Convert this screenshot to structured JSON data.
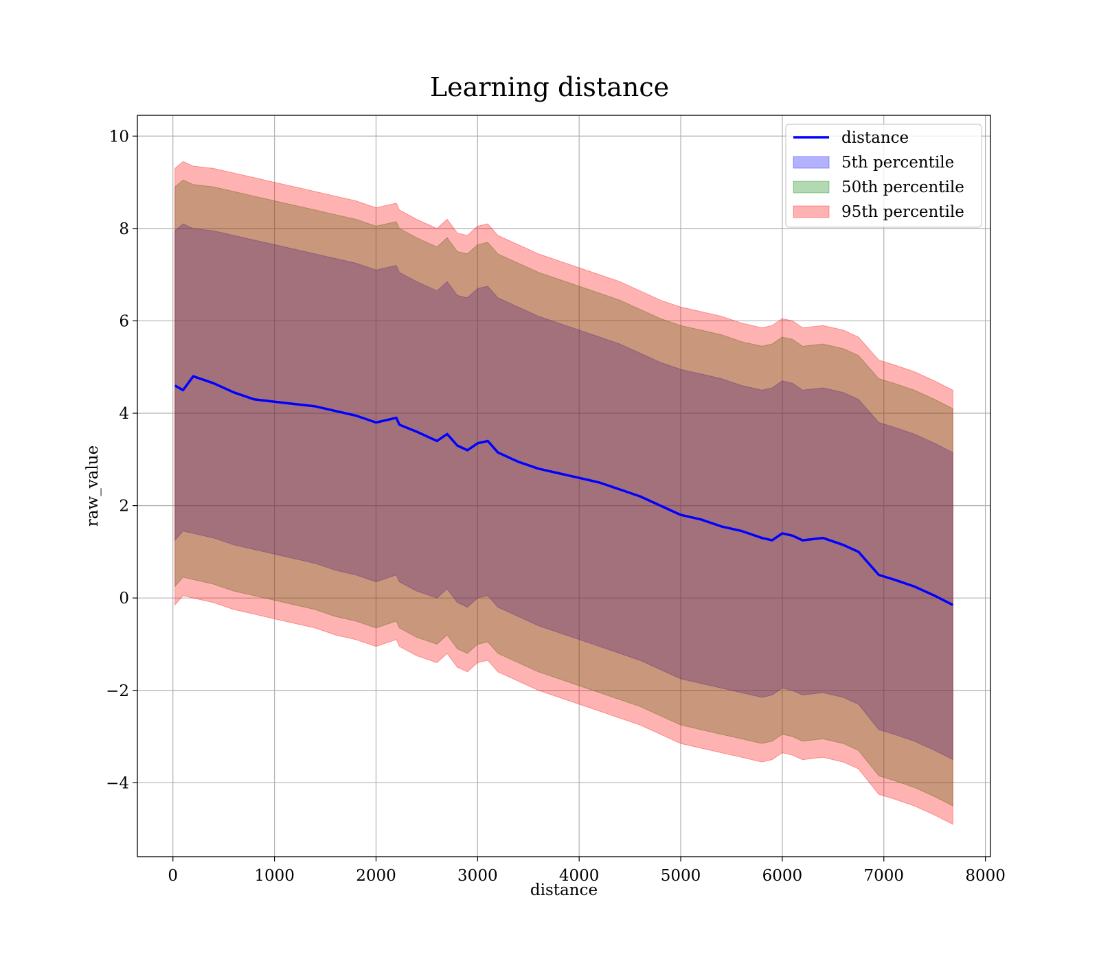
{
  "chart_data": {
    "type": "line",
    "title": "Learning distance",
    "xlabel": "distance",
    "ylabel": "raw_value",
    "xlim": [
      -350,
      8050
    ],
    "ylim": [
      -5.6,
      10.45
    ],
    "xticks": [
      0,
      1000,
      2000,
      3000,
      4000,
      5000,
      6000,
      7000,
      8000
    ],
    "yticks": [
      -4,
      -2,
      0,
      2,
      4,
      6,
      8,
      10
    ],
    "xtick_labels": [
      "0",
      "1000",
      "2000",
      "3000",
      "4000",
      "5000",
      "6000",
      "7000",
      "8000"
    ],
    "ytick_labels": [
      "−4",
      "−2",
      "0",
      "2",
      "4",
      "6",
      "8",
      "10"
    ],
    "grid": true,
    "legend_position": "top-right",
    "x": [
      20,
      100,
      200,
      400,
      600,
      800,
      1000,
      1200,
      1400,
      1600,
      1800,
      2000,
      2200,
      2230,
      2400,
      2600,
      2700,
      2800,
      2900,
      3000,
      3100,
      3200,
      3400,
      3600,
      3800,
      4000,
      4200,
      4400,
      4600,
      4800,
      5000,
      5200,
      5400,
      5600,
      5800,
      5900,
      6000,
      6100,
      6200,
      6400,
      6600,
      6750,
      6950,
      7100,
      7300,
      7500,
      7680
    ],
    "series": [
      {
        "name": "distance",
        "kind": "line",
        "color": "#0000ff",
        "values": [
          4.6,
          4.5,
          4.8,
          4.65,
          4.45,
          4.3,
          4.25,
          4.2,
          4.15,
          4.05,
          3.95,
          3.8,
          3.9,
          3.75,
          3.6,
          3.4,
          3.55,
          3.3,
          3.2,
          3.35,
          3.4,
          3.15,
          2.95,
          2.8,
          2.7,
          2.6,
          2.5,
          2.35,
          2.2,
          2.0,
          1.8,
          1.7,
          1.55,
          1.45,
          1.3,
          1.25,
          1.4,
          1.35,
          1.25,
          1.3,
          1.15,
          1.0,
          0.5,
          0.4,
          0.25,
          0.05,
          -0.15
        ]
      },
      {
        "name": "5th percentile",
        "kind": "band",
        "color": "#0000ff",
        "opacity": 0.3,
        "upper": [
          7.95,
          8.1,
          8.0,
          7.95,
          7.85,
          7.75,
          7.65,
          7.55,
          7.45,
          7.35,
          7.25,
          7.1,
          7.2,
          7.05,
          6.85,
          6.65,
          6.85,
          6.55,
          6.5,
          6.7,
          6.75,
          6.5,
          6.3,
          6.1,
          5.95,
          5.8,
          5.65,
          5.5,
          5.3,
          5.1,
          4.95,
          4.85,
          4.75,
          4.6,
          4.5,
          4.55,
          4.7,
          4.65,
          4.5,
          4.55,
          4.45,
          4.3,
          3.8,
          3.7,
          3.55,
          3.35,
          3.15
        ],
        "lower": [
          1.25,
          1.45,
          1.4,
          1.3,
          1.15,
          1.05,
          0.95,
          0.85,
          0.75,
          0.6,
          0.5,
          0.35,
          0.5,
          0.35,
          0.15,
          0.0,
          0.2,
          -0.1,
          -0.2,
          0.0,
          0.05,
          -0.2,
          -0.4,
          -0.6,
          -0.75,
          -0.9,
          -1.05,
          -1.2,
          -1.35,
          -1.55,
          -1.75,
          -1.85,
          -1.95,
          -2.05,
          -2.15,
          -2.1,
          -1.95,
          -2.0,
          -2.1,
          -2.05,
          -2.15,
          -2.3,
          -2.85,
          -2.95,
          -3.1,
          -3.3,
          -3.5
        ]
      },
      {
        "name": "50th percentile",
        "kind": "band",
        "color": "#008000",
        "opacity": 0.3,
        "upper": [
          8.9,
          9.05,
          8.95,
          8.9,
          8.8,
          8.7,
          8.6,
          8.5,
          8.4,
          8.3,
          8.2,
          8.05,
          8.15,
          8.0,
          7.8,
          7.6,
          7.8,
          7.5,
          7.45,
          7.65,
          7.7,
          7.45,
          7.25,
          7.05,
          6.9,
          6.75,
          6.6,
          6.45,
          6.25,
          6.05,
          5.9,
          5.8,
          5.7,
          5.55,
          5.45,
          5.5,
          5.65,
          5.6,
          5.45,
          5.5,
          5.4,
          5.25,
          4.75,
          4.65,
          4.5,
          4.3,
          4.1
        ],
        "lower": [
          0.25,
          0.45,
          0.4,
          0.3,
          0.15,
          0.05,
          -0.05,
          -0.15,
          -0.25,
          -0.4,
          -0.5,
          -0.65,
          -0.5,
          -0.65,
          -0.85,
          -1.0,
          -0.8,
          -1.1,
          -1.2,
          -1.0,
          -0.95,
          -1.2,
          -1.4,
          -1.6,
          -1.75,
          -1.9,
          -2.05,
          -2.2,
          -2.35,
          -2.55,
          -2.75,
          -2.85,
          -2.95,
          -3.05,
          -3.15,
          -3.1,
          -2.95,
          -3.0,
          -3.1,
          -3.05,
          -3.15,
          -3.3,
          -3.85,
          -3.95,
          -4.1,
          -4.3,
          -4.5
        ]
      },
      {
        "name": "95th percentile",
        "kind": "band",
        "color": "#ff0000",
        "opacity": 0.3,
        "upper": [
          9.3,
          9.45,
          9.35,
          9.3,
          9.2,
          9.1,
          9.0,
          8.9,
          8.8,
          8.7,
          8.6,
          8.45,
          8.55,
          8.4,
          8.2,
          8.0,
          8.2,
          7.9,
          7.85,
          8.05,
          8.1,
          7.85,
          7.65,
          7.45,
          7.3,
          7.15,
          7.0,
          6.85,
          6.65,
          6.45,
          6.3,
          6.2,
          6.1,
          5.95,
          5.85,
          5.9,
          6.05,
          6.0,
          5.85,
          5.9,
          5.8,
          5.65,
          5.15,
          5.05,
          4.9,
          4.7,
          4.5
        ],
        "lower": [
          -0.15,
          0.05,
          0.0,
          -0.1,
          -0.25,
          -0.35,
          -0.45,
          -0.55,
          -0.65,
          -0.8,
          -0.9,
          -1.05,
          -0.9,
          -1.05,
          -1.25,
          -1.4,
          -1.2,
          -1.5,
          -1.6,
          -1.4,
          -1.35,
          -1.6,
          -1.8,
          -2.0,
          -2.15,
          -2.3,
          -2.45,
          -2.6,
          -2.75,
          -2.95,
          -3.15,
          -3.25,
          -3.35,
          -3.45,
          -3.55,
          -3.5,
          -3.35,
          -3.4,
          -3.5,
          -3.45,
          -3.55,
          -3.7,
          -4.25,
          -4.35,
          -4.5,
          -4.7,
          -4.9
        ]
      }
    ],
    "legend": [
      {
        "label": "distance",
        "kind": "line",
        "color": "#0000ff"
      },
      {
        "label": "5th percentile",
        "kind": "band",
        "color": "#0000ff"
      },
      {
        "label": "50th percentile",
        "kind": "band",
        "color": "#008000"
      },
      {
        "label": "95th percentile",
        "kind": "band",
        "color": "#ff0000"
      }
    ]
  }
}
